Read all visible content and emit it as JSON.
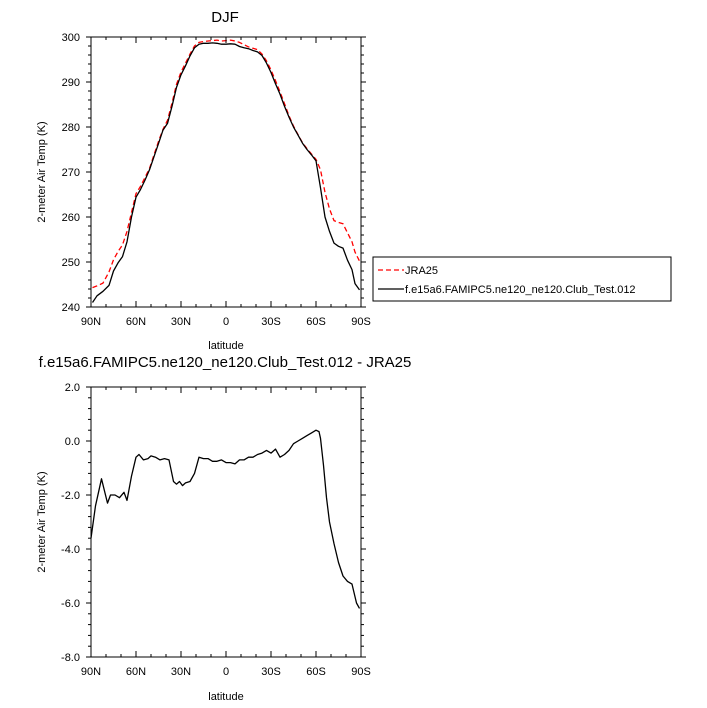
{
  "chart_data": [
    {
      "type": "line",
      "title": "DJF",
      "xlabel": "latitude",
      "ylabel": "2-meter Air Temp (K)",
      "x_ticks": [
        "90N",
        "60N",
        "30N",
        "0",
        "30S",
        "60S",
        "90S"
      ],
      "y_ticks": [
        "240",
        "250",
        "260",
        "270",
        "280",
        "290",
        "300"
      ],
      "xlim": [
        90,
        -90
      ],
      "ylim": [
        240,
        300
      ],
      "grid": false,
      "legend_position": "right",
      "series": [
        {
          "name": "JRA25",
          "color": "#ff0000",
          "style": "dashed",
          "x": [
            89,
            86,
            82,
            78,
            75,
            72,
            69,
            66,
            63,
            60,
            57,
            54,
            51,
            48,
            45,
            42,
            39,
            36,
            33,
            30,
            27,
            24,
            21,
            18,
            15,
            12,
            9,
            6,
            3,
            0,
            -3,
            -6,
            -9,
            -12,
            -15,
            -18,
            -21,
            -24,
            -27,
            -30,
            -33,
            -36,
            -39,
            -42,
            -45,
            -48,
            -51,
            -54,
            -57,
            -60,
            -63,
            -66,
            -69,
            -72,
            -75,
            -78,
            -81,
            -84,
            -86,
            -89
          ],
          "y": [
            244.3,
            244.7,
            245.3,
            247.8,
            250.5,
            252.3,
            253.8,
            256.8,
            261,
            265.2,
            266.8,
            268.8,
            270.8,
            273.8,
            276.8,
            279.5,
            281.5,
            285.3,
            289.5,
            292.2,
            294.2,
            296.2,
            298,
            298.8,
            299,
            299.1,
            299.2,
            299.3,
            299.1,
            299.2,
            299.3,
            299.1,
            298.8,
            298.3,
            297.8,
            297.5,
            297.2,
            296.2,
            294.7,
            292.7,
            290.3,
            287.8,
            285.2,
            282.5,
            280.2,
            278.3,
            276.5,
            275.2,
            274,
            272.8,
            270.5,
            265.5,
            261.8,
            259.2,
            258.8,
            258.5,
            256.5,
            254.5,
            252.2,
            250.2
          ]
        },
        {
          "name": "f.e15a6.FAMIPC5.ne120_ne120.Club_Test.012",
          "color": "#000000",
          "style": "solid",
          "x": [
            89,
            86,
            82,
            78,
            75,
            72,
            69,
            66,
            63,
            60,
            57,
            54,
            51,
            48,
            45,
            42,
            39,
            36,
            33,
            30,
            27,
            24,
            21,
            18,
            15,
            12,
            9,
            6,
            3,
            0,
            -3,
            -6,
            -9,
            -12,
            -15,
            -18,
            -21,
            -24,
            -27,
            -30,
            -33,
            -36,
            -39,
            -42,
            -45,
            -48,
            -51,
            -54,
            -57,
            -60,
            -63,
            -66,
            -69,
            -72,
            -75,
            -78,
            -81,
            -84,
            -86,
            -89
          ],
          "y": [
            241,
            242.5,
            243.5,
            244.8,
            248,
            249.8,
            251.2,
            254.5,
            260,
            264.4,
            266.1,
            268.2,
            270.5,
            273.4,
            276.3,
            279.3,
            280.8,
            284.6,
            288.8,
            291.6,
            293.6,
            295.8,
            297.6,
            298.4,
            298.6,
            298.6,
            298.7,
            298.6,
            298.4,
            298.4,
            298.5,
            298.4,
            297.9,
            297.6,
            297.4,
            297,
            296.7,
            295.9,
            294.2,
            292.1,
            289.6,
            287.3,
            284.6,
            282.2,
            280,
            278.2,
            276.4,
            275,
            273.8,
            272.5,
            266.5,
            260,
            256.8,
            254.2,
            253.5,
            253.1,
            250.4,
            248.3,
            245.2,
            243.8
          ]
        }
      ]
    },
    {
      "type": "line",
      "title": "f.e15a6.FAMIPC5.ne120_ne120.Club_Test.012 - JRA25",
      "xlabel": "latitude",
      "ylabel": "2-meter Air Temp (K)",
      "x_ticks": [
        "90N",
        "60N",
        "30N",
        "0",
        "30S",
        "60S",
        "90S"
      ],
      "y_ticks": [
        "-8.0",
        "-6.0",
        "-4.0",
        "-2.0",
        "0.0",
        "2.0"
      ],
      "xlim": [
        90,
        -90
      ],
      "ylim": [
        -8,
        2
      ],
      "grid": false,
      "series": [
        {
          "color": "#000000",
          "style": "solid",
          "x": [
            90,
            87,
            83,
            79,
            77,
            74,
            71,
            68,
            66,
            63,
            60,
            58,
            55,
            52,
            50,
            47,
            44,
            41,
            38,
            35,
            33,
            31,
            29,
            27,
            24,
            21,
            18,
            15,
            12,
            9,
            6,
            3,
            0,
            -3,
            -6,
            -9,
            -12,
            -15,
            -18,
            -21,
            -24,
            -27,
            -30,
            -33,
            -36,
            -39,
            -42,
            -45,
            -48,
            -51,
            -54,
            -57,
            -60,
            -62,
            -63,
            -65,
            -67,
            -69,
            -72,
            -75,
            -78,
            -81,
            -84,
            -87,
            -89
          ],
          "y": [
            -3.6,
            -2.4,
            -1.4,
            -2.3,
            -2,
            -2,
            -2.1,
            -1.9,
            -2.2,
            -1.3,
            -0.6,
            -0.5,
            -0.7,
            -0.65,
            -0.55,
            -0.6,
            -0.7,
            -0.65,
            -0.7,
            -1.5,
            -1.6,
            -1.5,
            -1.65,
            -1.55,
            -1.5,
            -1.2,
            -0.6,
            -0.65,
            -0.65,
            -0.75,
            -0.75,
            -0.7,
            -0.8,
            -0.8,
            -0.85,
            -0.7,
            -0.7,
            -0.6,
            -0.6,
            -0.5,
            -0.45,
            -0.35,
            -0.45,
            -0.3,
            -0.6,
            -0.5,
            -0.35,
            -0.1,
            0,
            0.1,
            0.2,
            0.3,
            0.4,
            0.35,
            0.1,
            -0.9,
            -2.1,
            -3,
            -3.8,
            -4.5,
            -5,
            -5.2,
            -5.3,
            -6,
            -6.2
          ]
        }
      ]
    }
  ]
}
